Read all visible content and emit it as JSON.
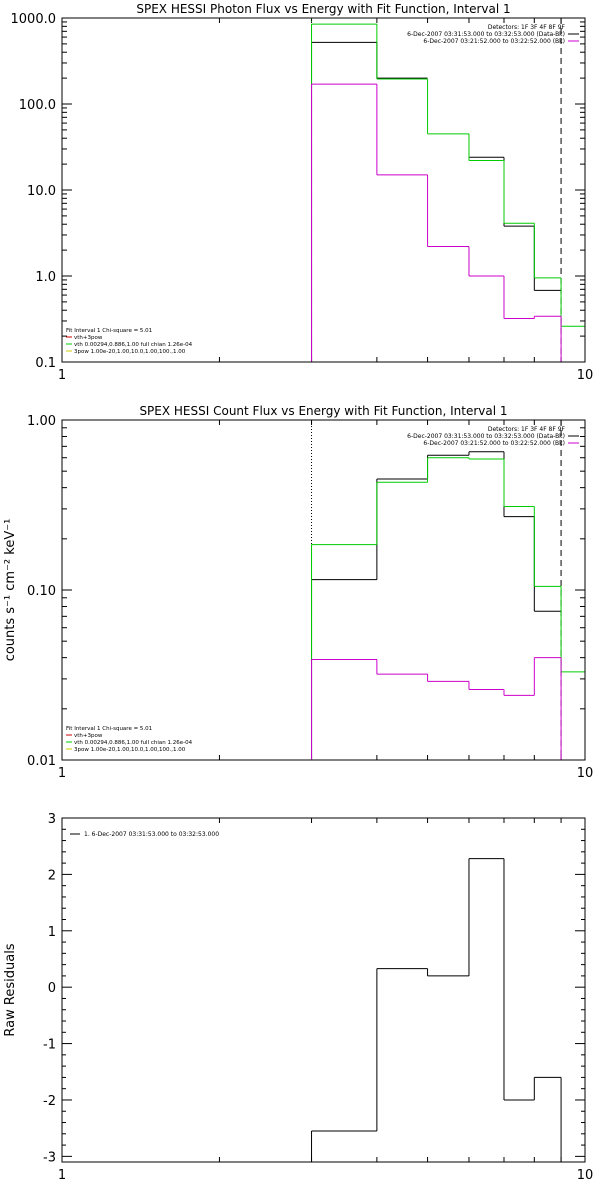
{
  "chart_data": [
    {
      "type": "line",
      "title": "SPEX HESSI Photon Flux vs Energy with Fit Function, Interval 1",
      "ylabel": "",
      "xscale": "log",
      "yscale": "log",
      "xlim": [
        1,
        10
      ],
      "ylim": [
        0.1,
        1000
      ],
      "xticks": [
        {
          "v": 1,
          "label": "1"
        },
        {
          "v": 10,
          "label": "10"
        }
      ],
      "yticks": [
        {
          "v": 0.1,
          "label": "0.1"
        },
        {
          "v": 1,
          "label": "1.0"
        },
        {
          "v": 10,
          "label": "10.0"
        },
        {
          "v": 100,
          "label": "100.0"
        },
        {
          "v": 1000,
          "label": "1000.0"
        }
      ],
      "edges": [
        3,
        4,
        5,
        6,
        7,
        8,
        9,
        10
      ],
      "series": [
        {
          "color": "#000000",
          "values": [
            520,
            200,
            null,
            24,
            3.8,
            0.68,
            null
          ]
        },
        {
          "color": "#00cc00",
          "values": [
            850,
            195,
            45,
            22,
            4.1,
            0.95,
            0.26
          ]
        },
        {
          "color": "#cc00cc",
          "values": [
            170,
            15,
            2.2,
            1.0,
            0.32,
            0.34,
            0.1
          ]
        }
      ],
      "vlines": [
        {
          "x": 3,
          "color": "#00aa00",
          "style": "dotted"
        },
        {
          "x": 9,
          "color": "#000000",
          "style": "dashed"
        }
      ],
      "legend_tr": [
        {
          "text": "Detectors: 1F 3F 4F 8F 9F",
          "color": ""
        },
        {
          "text": "6-Dec-2007 03:31:53.000 to 03:32:53.000 (Data-Bk)",
          "color": "#000000"
        },
        {
          "text": "6-Dec-2007 03:21:52.000 to 03:22:52.000 (Bk)",
          "color": "#cc00cc"
        }
      ],
      "legend_bl": [
        {
          "text": "Fit Interval 1    Chi-square = 5.01",
          "color": ""
        },
        {
          "text": "vth+3pow",
          "color": "#cc0000"
        },
        {
          "text": "vth 0.00294,0.886,1.00  full chian 1.26e-04",
          "color": "#00cc00"
        },
        {
          "text": "3pow 1.00e-20,1.00,10.0,1.00,100.,1.00",
          "color": "#cccc00"
        }
      ]
    },
    {
      "type": "line",
      "title": "SPEX HESSI Count Flux vs Energy with Fit Function, Interval 1",
      "ylabel": "counts s⁻¹ cm⁻² keV⁻¹",
      "xscale": "log",
      "yscale": "log",
      "xlim": [
        1,
        10
      ],
      "ylim": [
        0.01,
        1
      ],
      "xticks": [
        {
          "v": 1,
          "label": "1"
        },
        {
          "v": 10,
          "label": "10"
        }
      ],
      "yticks": [
        {
          "v": 0.01,
          "label": "0.01"
        },
        {
          "v": 0.1,
          "label": "0.10"
        },
        {
          "v": 1,
          "label": "1.00"
        }
      ],
      "edges": [
        3,
        4,
        5,
        6,
        7,
        8,
        9,
        10
      ],
      "series": [
        {
          "color": "#000000",
          "values": [
            0.115,
            0.45,
            0.62,
            0.65,
            0.27,
            0.075,
            null
          ]
        },
        {
          "color": "#00cc00",
          "values": [
            0.185,
            0.43,
            0.6,
            0.59,
            0.31,
            0.105,
            0.033
          ]
        },
        {
          "color": "#cc00cc",
          "values": [
            0.039,
            0.032,
            0.029,
            0.026,
            0.024,
            0.04,
            0.01
          ]
        }
      ],
      "vlines": [
        {
          "x": 3,
          "color": "#000000",
          "style": "dotted"
        },
        {
          "x": 9,
          "color": "#000000",
          "style": "dashed"
        }
      ],
      "legend_tr": [
        {
          "text": "Detectors: 1F 3F 4F 8F 9F",
          "color": ""
        },
        {
          "text": "6-Dec-2007 03:31:53.000 to 03:32:53.000 (Data-Bk)",
          "color": "#000000"
        },
        {
          "text": "6-Dec-2007 03:21:52.000 to 03:22:52.000 (Bk)",
          "color": "#cc00cc"
        }
      ],
      "legend_bl": [
        {
          "text": "Fit Interval 1    Chi-square = 5.01",
          "color": ""
        },
        {
          "text": "vth+3pow",
          "color": "#cc0000"
        },
        {
          "text": "vth 0.00294,0.886,1.00  full chian 1.26e-04",
          "color": "#00cc00"
        },
        {
          "text": "3pow 1.00e-20,1.00,10.0,1.00,100.,1.00",
          "color": "#cccc00"
        }
      ]
    },
    {
      "type": "line",
      "title": "",
      "ylabel": "Raw Residuals",
      "xscale": "log",
      "yscale": "linear",
      "xlim": [
        1,
        10
      ],
      "ylim": [
        -3.1,
        3
      ],
      "xticks": [
        {
          "v": 1,
          "label": "1"
        },
        {
          "v": 10,
          "label": "10"
        }
      ],
      "yticks": [
        {
          "v": -3,
          "label": "-3"
        },
        {
          "v": -2,
          "label": "-2"
        },
        {
          "v": -1,
          "label": "-1"
        },
        {
          "v": 0,
          "label": "0"
        },
        {
          "v": 1,
          "label": "1"
        },
        {
          "v": 2,
          "label": "2"
        },
        {
          "v": 3,
          "label": "3"
        }
      ],
      "edges": [
        3,
        4,
        5,
        6,
        7,
        8,
        9
      ],
      "series": [
        {
          "color": "#000000",
          "values": [
            -2.55,
            0.33,
            0.2,
            2.28,
            -2.0,
            -1.6
          ]
        }
      ],
      "vlines": [],
      "legend_tr": [],
      "legend_bl": [],
      "legend_tl": [
        {
          "text": "1.  6-Dec-2007 03:31:53.000 to 03:32:53.000",
          "color": "#000000"
        }
      ]
    }
  ]
}
